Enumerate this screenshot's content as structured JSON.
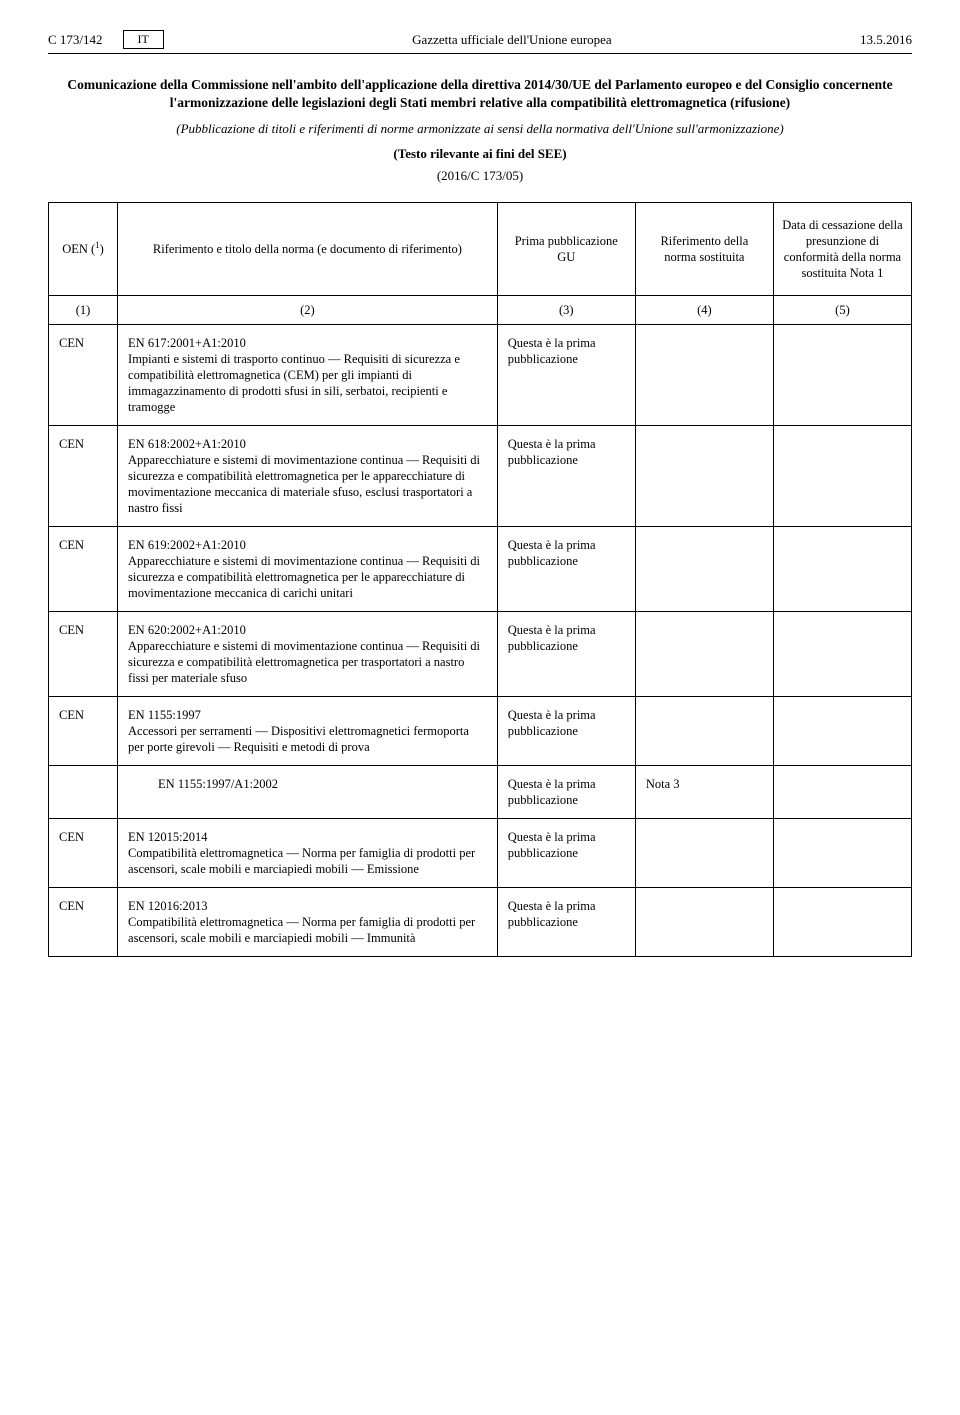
{
  "header": {
    "page_ref": "C 173/142",
    "lang": "IT",
    "journal": "Gazzetta ufficiale dell'Unione europea",
    "date": "13.5.2016"
  },
  "title": {
    "bold": "Comunicazione della Commissione nell'ambito dell'applicazione della direttiva 2014/30/UE del Parlamento europeo e del Consiglio concernente l'armonizzazione delle legislazioni degli Stati membri relative alla compatibilità elettromagnetica (rifusione)",
    "italic": "(Pubblicazione di titoli e riferimenti di norme armonizzate ai sensi della normativa dell'Unione sull'armonizzazione)",
    "relevance": "(Testo rilevante ai fini del SEE)",
    "docref": "(2016/C 173/05)"
  },
  "columns": {
    "c1_a": "OEN (",
    "c1_b": "1",
    "c1_c": ")",
    "c2": "Riferimento e titolo della norma\n(e documento di riferimento)",
    "c3": "Prima pubblicazione GU",
    "c4": "Riferimento della norma sostituita",
    "c5": "Data di cessazione della presunzione di conformità della norma sostituita\nNota 1"
  },
  "numrow": {
    "n1": "(1)",
    "n2": "(2)",
    "n3": "(3)",
    "n4": "(4)",
    "n5": "(5)"
  },
  "prima": "Questa è la prima pubblicazione",
  "oen": "CEN",
  "rows": [
    {
      "code": "EN 617:2001+A1:2010",
      "desc": "Impianti e sistemi di trasporto continuo — Requisiti di sicurezza e compatibilità elettromagnetica (CEM) per gli impianti di immagazzinamento di prodotti sfusi in sili, serbatoi, recipienti e tramogge"
    },
    {
      "code": "EN 618:2002+A1:2010",
      "desc": "Apparecchiature e sistemi di movimentazione continua — Requisiti di sicurezza e compatibilità elettromagnetica per le apparecchiature di movimentazione meccanica di materiale sfuso, esclusi trasportatori a nastro fissi"
    },
    {
      "code": "EN 619:2002+A1:2010",
      "desc": "Apparecchiature e sistemi di movimentazione continua — Requisiti di sicurezza e compatibilità elettromagnetica per le apparecchiature di movimentazione meccanica di carichi unitari"
    },
    {
      "code": "EN 620:2002+A1:2010",
      "desc": "Apparecchiature e sistemi di movimentazione continua — Requisiti di sicurezza e compatibilità elettromagnetica per trasportatori a nastro fissi per materiale sfuso"
    },
    {
      "code": "EN 1155:1997",
      "desc": "Accessori per serramenti — Dispositivi elettromagnetici fermoporta per porte girevoli — Requisiti e metodi di prova",
      "sub": {
        "code": "EN 1155:1997/A1:2002",
        "col4": "Nota 3"
      }
    },
    {
      "code": "EN 12015:2014",
      "desc": "Compatibilità elettromagnetica — Norma per famiglia di prodotti per ascensori, scale mobili e marciapiedi mobili — Emissione"
    },
    {
      "code": "EN 12016:2013",
      "desc": "Compatibilità elettromagnetica — Norma per famiglia di prodotti per ascensori, scale mobili e marciapiedi mobili — Immunità"
    }
  ]
}
